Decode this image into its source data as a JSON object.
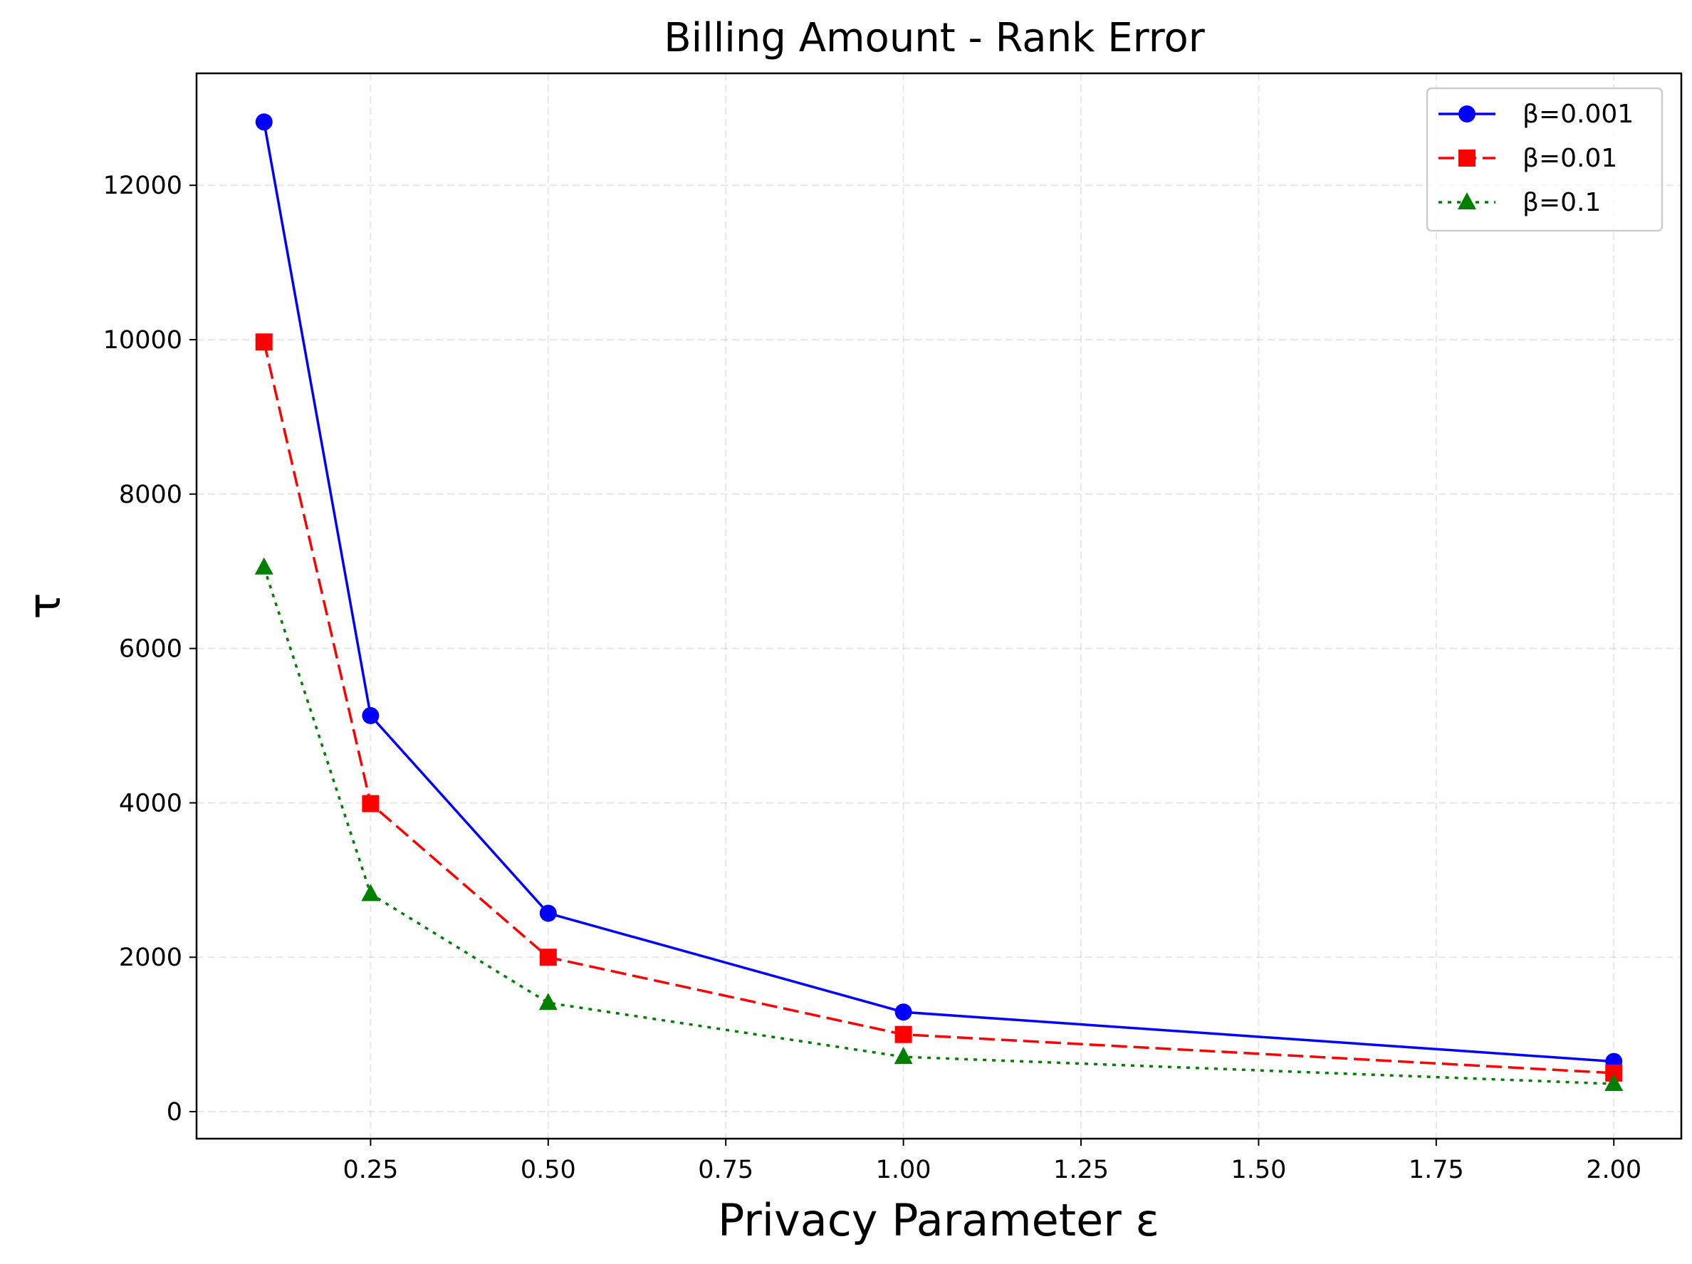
{
  "chart_data": {
    "type": "line",
    "title": "Billing Amount - Rank Error",
    "xlabel": "Privacy Parameter ε",
    "ylabel": "τ",
    "x": [
      0.1,
      0.25,
      0.5,
      1.0,
      2.0
    ],
    "xlim": [
      0.005,
      2.095
    ],
    "ylim": [
      -350,
      13450
    ],
    "xticks": [
      0.25,
      0.5,
      0.75,
      1.0,
      1.25,
      1.5,
      1.75,
      2.0
    ],
    "xtick_labels": [
      "0.25",
      "0.50",
      "0.75",
      "1.00",
      "1.25",
      "1.50",
      "1.75",
      "2.00"
    ],
    "yticks": [
      0,
      2000,
      4000,
      6000,
      8000,
      10000,
      12000
    ],
    "ytick_labels": [
      "0",
      "2000",
      "4000",
      "6000",
      "8000",
      "10000",
      "12000"
    ],
    "grid": true,
    "legend_position": "top-right",
    "series": [
      {
        "name": "β=0.001",
        "values": [
          12820,
          5130,
          2570,
          1290,
          650
        ],
        "color": "#0000ff",
        "marker": "circle",
        "linestyle": "solid"
      },
      {
        "name": "β=0.01",
        "values": [
          9970,
          3990,
          2000,
          1000,
          500
        ],
        "color": "#ff0000",
        "marker": "square",
        "linestyle": "dashed"
      },
      {
        "name": "β=0.1",
        "values": [
          7050,
          2820,
          1410,
          710,
          360
        ],
        "color": "#008000",
        "marker": "triangle",
        "linestyle": "dotted"
      }
    ]
  }
}
